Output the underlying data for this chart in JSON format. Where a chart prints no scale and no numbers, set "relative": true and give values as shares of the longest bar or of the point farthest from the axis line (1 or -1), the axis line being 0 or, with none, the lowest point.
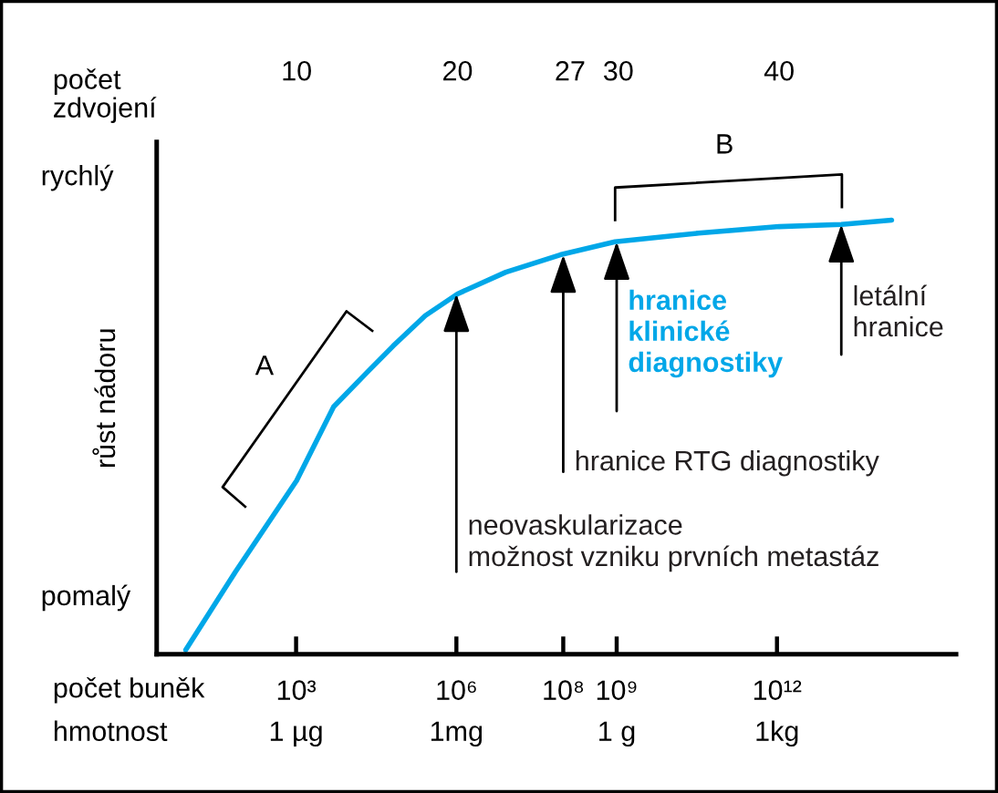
{
  "chart_data": {
    "type": "line",
    "relative": true,
    "log": "x",
    "xlabel": "počet buněk",
    "x2label": "počet\nzdvojení",
    "ylabel": "růst nádoru",
    "xlim": [
      2.46,
      2250000000000000.0
    ],
    "x2lim": [
      1.3,
      51
    ],
    "xticks": [
      {
        "value": 1000,
        "label": "10³"
      },
      {
        "value": 1000000,
        "label": "10⁶"
      },
      {
        "value": 100000000,
        "label": "10⁸"
      },
      {
        "value": 1000000000,
        "label": "10⁹"
      },
      {
        "value": 1000000000000,
        "label": "10¹²"
      }
    ],
    "x2ticks": [
      10,
      20,
      27,
      30,
      40
    ],
    "series": [
      {
        "color": "#00a7e8",
        "x": [
          8.6,
          73.5,
          1024,
          5043,
          21619,
          65536,
          262144,
          1050000,
          8400000,
          88000000,
          930000000,
          34000000000,
          1100000000000,
          16000000000000,
          140000000000000
        ],
        "values": [
          0.01,
          0.19,
          0.4,
          0.57,
          0.65,
          0.71,
          0.78,
          0.83,
          0.88,
          0.92,
          0.95,
          0.97,
          0.985,
          0.99,
          1.0
        ]
      }
    ],
    "annotations": [
      "rychlý",
      "pomalý",
      "A",
      "B",
      {
        "text": "neovaskularizace\nmožnost vzniku prvních metastáz",
        "x": 1000000,
        "y": 0.83
      },
      {
        "text": "hranice RTG diagnostiky",
        "x": 100000000,
        "y": 0.92
      },
      {
        "text": "hranice\nklinické\ndiagnostiky",
        "x": 1000000000,
        "y": 0.95
      },
      {
        "text": "letální\nhranice",
        "x": 16000000000000,
        "y": 0.99
      },
      "hmotnost",
      "1 µg",
      "1mg",
      "1 g",
      "1kg"
    ],
    "grid": false,
    "marker": "none",
    "line_style": "solid"
  }
}
